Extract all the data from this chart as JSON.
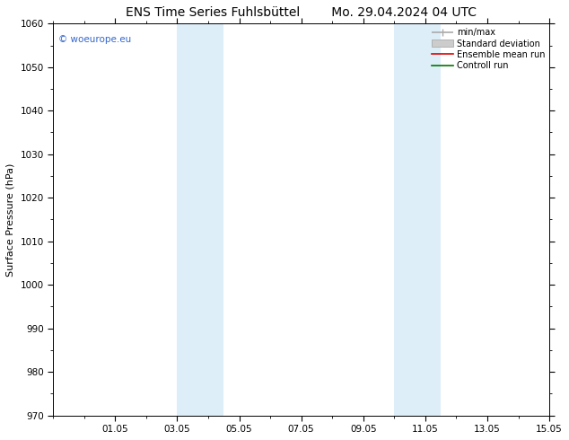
{
  "title_left": "ENS Time Series Fuhlsbüttel",
  "title_right": "Mo. 29.04.2024 04 UTC",
  "ylabel": "Surface Pressure (hPa)",
  "ylim": [
    970,
    1060
  ],
  "yticks": [
    970,
    980,
    990,
    1000,
    1010,
    1020,
    1030,
    1040,
    1050,
    1060
  ],
  "xlim": [
    0,
    16
  ],
  "xtick_labels": [
    "01.05",
    "03.05",
    "05.05",
    "07.05",
    "09.05",
    "11.05",
    "13.05",
    "15.05"
  ],
  "xtick_positions": [
    2,
    4,
    6,
    8,
    10,
    12,
    14,
    16
  ],
  "shade_bands": [
    {
      "x_start": 4.0,
      "x_end": 5.5,
      "color": "#ddeef9"
    },
    {
      "x_start": 11.0,
      "x_end": 12.5,
      "color": "#ddeef9"
    }
  ],
  "watermark_text": "© woeurope.eu",
  "watermark_color": "#3366cc",
  "legend_labels": [
    "min/max",
    "Standard deviation",
    "Ensemble mean run",
    "Controll run"
  ],
  "background_color": "#ffffff",
  "title_fontsize": 10,
  "label_fontsize": 8,
  "tick_fontsize": 7.5
}
